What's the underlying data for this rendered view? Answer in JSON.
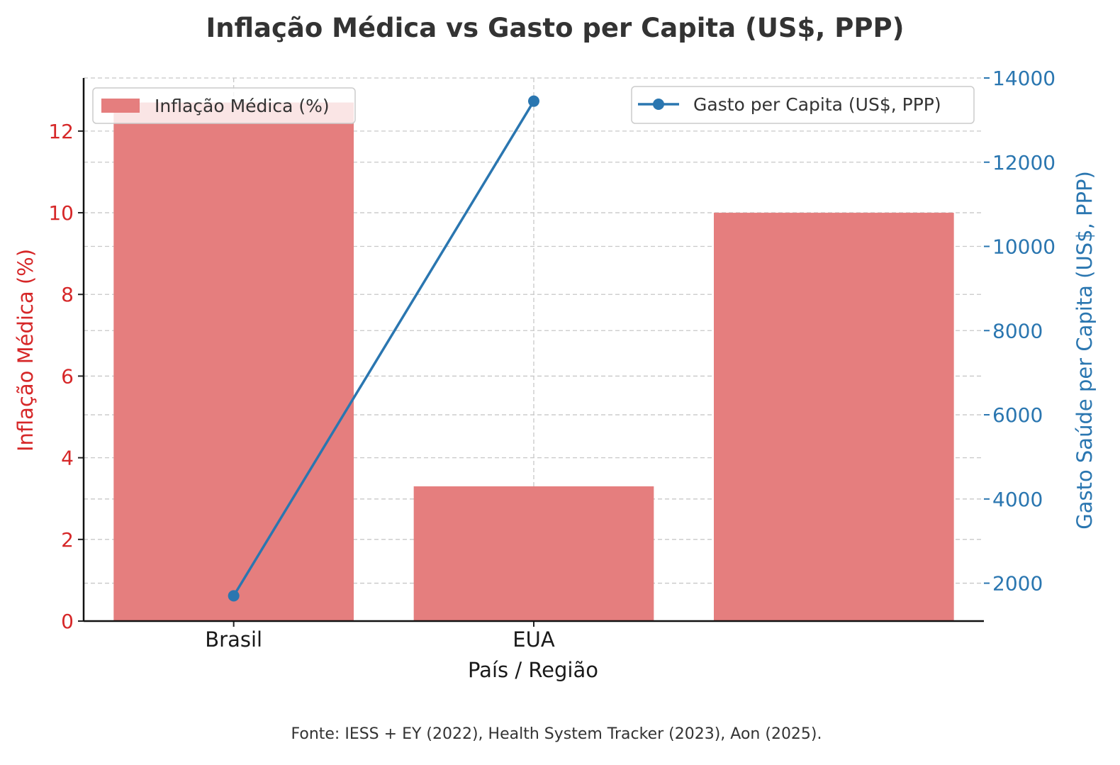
{
  "chart_data": {
    "type": "bar",
    "title": "Inflação Médica vs Gasto per Capita (US$, PPP)",
    "xlabel": "País / Região",
    "ylabel_left": "Inflação Médica (%)",
    "ylabel_right": "Gasto Saúde per Capita (US$, PPP)",
    "footnote": "Fonte: IESS + EY (2022), Health System Tracker (2023), Aon (2025).",
    "categories": [
      "Brasil",
      "EUA",
      ""
    ],
    "grid": true,
    "series": [
      {
        "name": "Inflação Médica (%)",
        "type": "bar",
        "axis": "left",
        "color": "#e57e7e",
        "values": [
          12.7,
          3.3,
          10.0
        ]
      },
      {
        "name": "Gasto per Capita (US$, PPP)",
        "type": "line",
        "axis": "right",
        "color": "#2a76b0",
        "marker": "circle",
        "values": [
          1700,
          13450,
          null
        ]
      }
    ],
    "left_axis": {
      "color": "#d62728",
      "ylim": [
        0,
        13.3
      ],
      "ticks": [
        "0",
        "2",
        "4",
        "6",
        "8",
        "10",
        "12"
      ]
    },
    "right_axis": {
      "color": "#2a76b0",
      "ylim": [
        1100,
        14000
      ],
      "ticks": [
        "2000",
        "4000",
        "6000",
        "8000",
        "10000",
        "12000",
        "14000"
      ]
    },
    "legend_left": {
      "placement": "top-left",
      "label": "Inflação Médica (%)"
    },
    "legend_right": {
      "placement": "top-right",
      "label": "Gasto per Capita (US$, PPP)"
    }
  }
}
